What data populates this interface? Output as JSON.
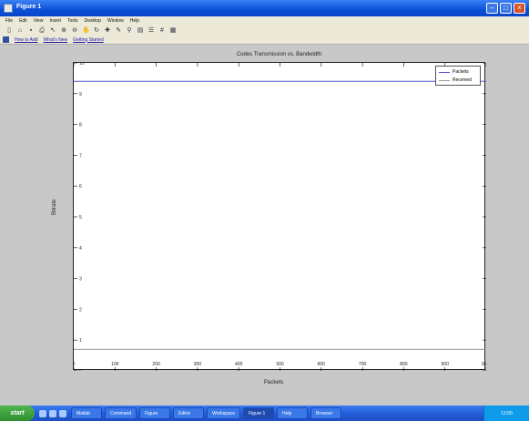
{
  "window": {
    "title": "Figure 1"
  },
  "menu": [
    "File",
    "Edit",
    "View",
    "Insert",
    "Tools",
    "Desktop",
    "Window",
    "Help"
  ],
  "toolbar": [
    "new-icon",
    "open-icon",
    "save-icon",
    "print-icon",
    "pointer-icon",
    "zoom-in-icon",
    "zoom-out-icon",
    "pan-icon",
    "rotate-icon",
    "datacursor-icon",
    "brush-icon",
    "link-icon",
    "colorbar-icon",
    "legend-icon",
    "grid-icon",
    "plottools-icon"
  ],
  "shortcuts": {
    "items": [
      "How to Add",
      "What's New",
      "Getting Started"
    ]
  },
  "chart_data": {
    "type": "line",
    "title": "Codes Transmission vs. Bandwidth",
    "xlabel": "Packets",
    "ylabel": "Bitrate",
    "x": [
      0,
      100,
      200,
      300,
      400,
      500,
      600,
      700,
      800,
      900,
      1000
    ],
    "xlim": [
      0,
      1000
    ],
    "ylim": [
      0,
      10
    ],
    "xticks": [
      "0",
      "100",
      "200",
      "300",
      "400",
      "500",
      "600",
      "700",
      "800",
      "900",
      "1000"
    ],
    "yticks": [
      "0",
      "1",
      "2",
      "3",
      "4",
      "5",
      "6",
      "7",
      "8",
      "9",
      "10"
    ],
    "series": [
      {
        "name": "Packets",
        "color": "#5555cc",
        "values": [
          9.4,
          9.4,
          9.4,
          9.4,
          9.4,
          9.4,
          9.4,
          9.4,
          9.4,
          9.4,
          9.4
        ]
      },
      {
        "name": "Received",
        "color": "#999999",
        "values": [
          0.7,
          0.7,
          0.7,
          0.7,
          0.7,
          0.7,
          0.7,
          0.7,
          0.7,
          0.7,
          0.7
        ]
      }
    ],
    "legend_position": "top-right",
    "grid": false
  },
  "taskbar": {
    "start": "start",
    "tasks": [
      "Matlab",
      "Command",
      "Figure",
      "Editor",
      "Workspace",
      "Figure 1",
      "Help",
      "Browser"
    ],
    "tray": "12:00"
  }
}
